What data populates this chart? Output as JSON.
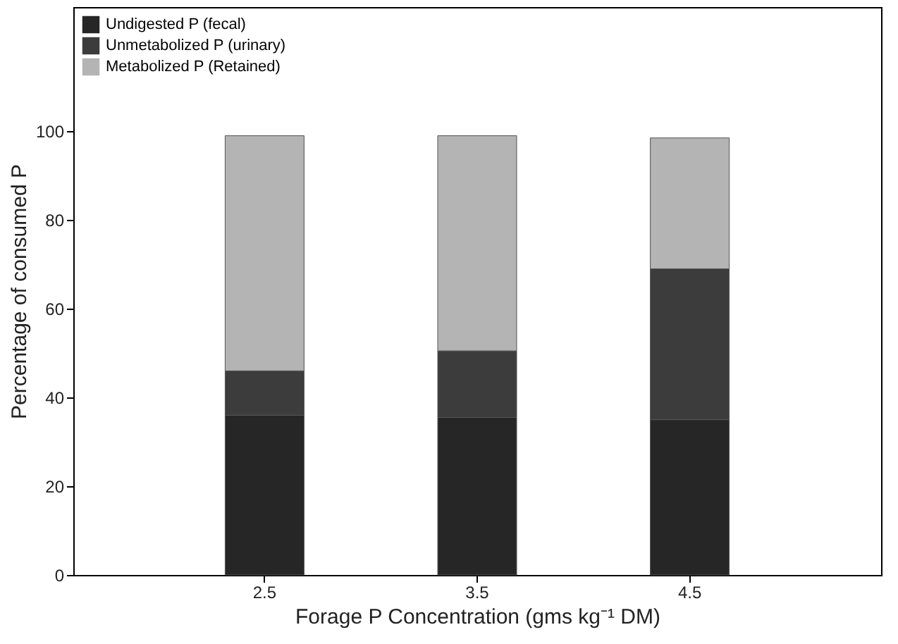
{
  "chart_data": {
    "type": "bar",
    "stacked": true,
    "xlabel": "Forage P Concentration (gms kg⁻¹ DM)",
    "ylabel": "Percentage of consumed P",
    "categories": [
      "2.5",
      "3.5",
      "4.5"
    ],
    "series": [
      {
        "name": "Undigested P (fecal)",
        "color": "#262626",
        "values": [
          36,
          35.5,
          35
        ]
      },
      {
        "name": "Unmetabolized P (urinary)",
        "color": "#3c3c3c",
        "values": [
          10,
          15,
          34
        ]
      },
      {
        "name": "Metabolized P (Retained)",
        "color": "#b4b4b4",
        "values": [
          53,
          48.5,
          29.5
        ]
      }
    ],
    "ylim": [
      0,
      128
    ],
    "yticks": [
      0,
      20,
      40,
      60,
      80,
      100
    ],
    "grid": false,
    "legend": "top left"
  }
}
